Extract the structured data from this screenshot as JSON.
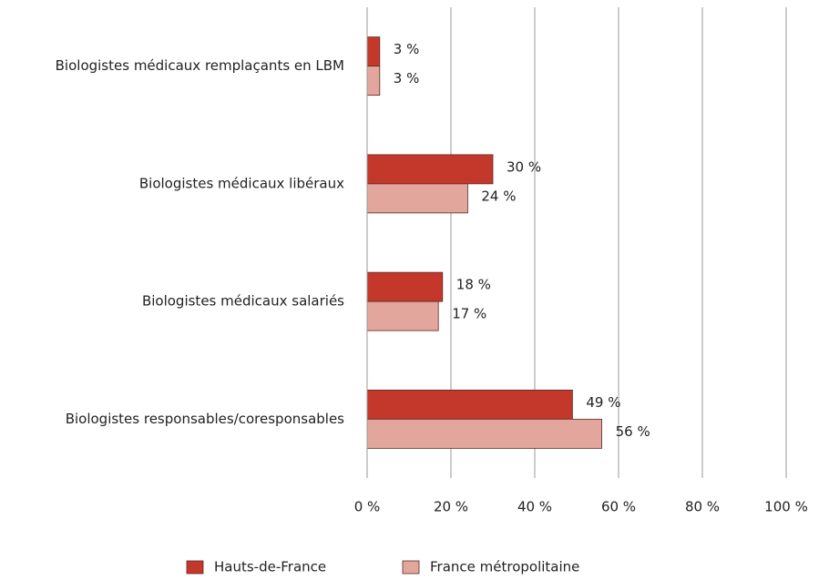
{
  "chart_data": {
    "type": "hbar",
    "categories": [
      "Biologistes médicaux remplaçants en LBM",
      "Biologistes médicaux libéraux",
      "Biologistes médicaux salariés",
      "Biologistes responsables/coresponsables"
    ],
    "series": [
      {
        "name": "Hauts-de-France",
        "color": "#c4382b",
        "values": [
          3,
          30,
          18,
          49
        ],
        "value_labels": [
          "3 %",
          "30 %",
          "18 %",
          "49 %"
        ]
      },
      {
        "name": "France métropolitaine",
        "color": "#e3a69c",
        "values": [
          3,
          24,
          17,
          56
        ],
        "value_labels": [
          "3 %",
          "24 %",
          "17 %",
          "56 %"
        ]
      }
    ],
    "xlim": [
      0,
      100
    ],
    "xticks": [
      {
        "value": 0,
        "label": "0 %"
      },
      {
        "value": 20,
        "label": "20 %"
      },
      {
        "value": 40,
        "label": "40 %"
      },
      {
        "value": 60,
        "label": "60 %"
      },
      {
        "value": 80,
        "label": "80 %"
      },
      {
        "value": 100,
        "label": "100 %"
      }
    ],
    "grid": true,
    "legend": "bottom"
  }
}
